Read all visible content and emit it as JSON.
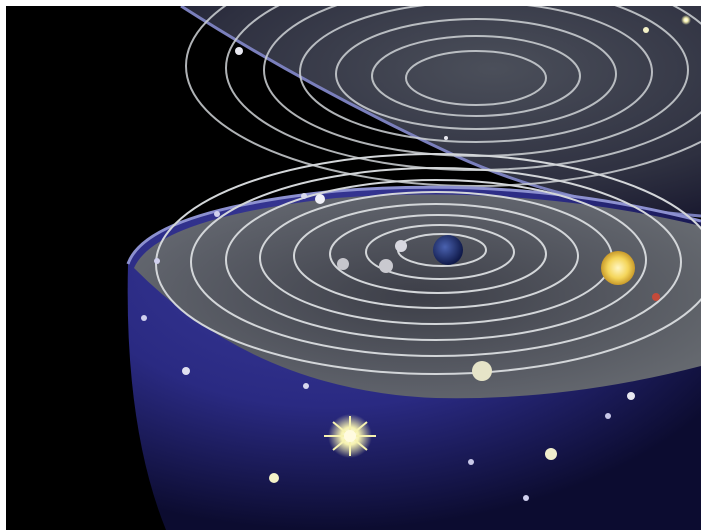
{
  "image": {
    "alt": "",
    "colors": {
      "background": "#000000",
      "sphere_blue": "#2b2b86",
      "sphere_shadow": "#0d0d32",
      "ring": "#cfd3d6",
      "ring_fill": "#56595c",
      "earth": "#1e2c6e",
      "sun": "#f6d86a",
      "star": "#f4f2c8"
    }
  }
}
